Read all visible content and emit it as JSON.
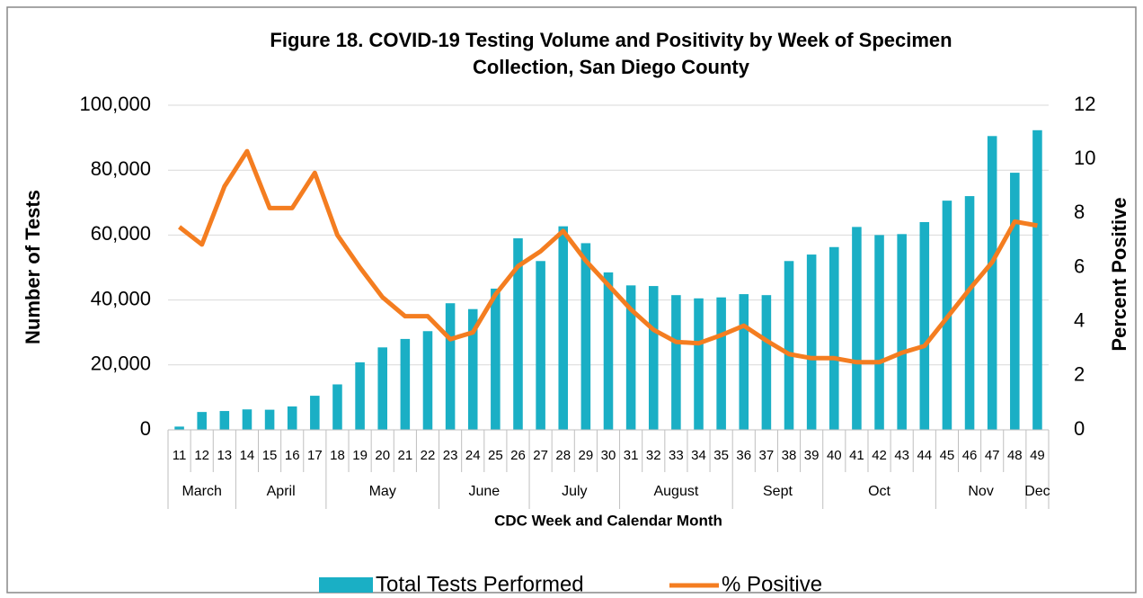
{
  "chart_data": {
    "type": "bar_line",
    "title": "Figure 18. COVID-19 Testing Volume and Positivity by Week of Specimen Collection, San Diego County",
    "title_lines": [
      "Figure 18. COVID-19 Testing Volume and Positivity by Week of Specimen",
      "Collection, San Diego County"
    ],
    "x_label": "CDC Week and Calendar Month",
    "y_label": "Number of Tests",
    "y2_label": "Percent Positive",
    "categories": [
      "11",
      "12",
      "13",
      "14",
      "15",
      "16",
      "17",
      "18",
      "19",
      "20",
      "21",
      "22",
      "23",
      "24",
      "25",
      "26",
      "27",
      "28",
      "29",
      "30",
      "31",
      "32",
      "33",
      "34",
      "35",
      "36",
      "37",
      "38",
      "39",
      "40",
      "41",
      "42",
      "43",
      "44",
      "45",
      "46",
      "47",
      "48",
      "49"
    ],
    "month_groups": [
      {
        "label": "March",
        "weeks": 3
      },
      {
        "label": "April",
        "weeks": 4
      },
      {
        "label": "May",
        "weeks": 5
      },
      {
        "label": "June",
        "weeks": 4
      },
      {
        "label": "July",
        "weeks": 4
      },
      {
        "label": "August",
        "weeks": 5
      },
      {
        "label": "Sept",
        "weeks": 4
      },
      {
        "label": "Oct",
        "weeks": 5
      },
      {
        "label": "Nov",
        "weeks": 4
      },
      {
        "label": "Dec",
        "weeks": 1
      }
    ],
    "series": [
      {
        "name": "Total Tests Performed",
        "type": "bar",
        "color": "#1aafc5",
        "values": [
          1000,
          5500,
          5800,
          6300,
          6200,
          7200,
          10500,
          14000,
          20800,
          25400,
          28000,
          30400,
          39000,
          37200,
          43500,
          59000,
          52000,
          62700,
          57500,
          48500,
          44500,
          44300,
          41500,
          40500,
          40800,
          41800,
          41500,
          52000,
          54000,
          56300,
          62500,
          60000,
          60300,
          64000,
          70600,
          72000,
          90500,
          79200,
          92300
        ]
      },
      {
        "name": "% Positive",
        "type": "line",
        "axis": "y2",
        "color": "#f47d20",
        "values": [
          7.5,
          6.85,
          9.0,
          10.3,
          8.2,
          8.2,
          9.5,
          7.2,
          6.0,
          4.9,
          4.2,
          4.2,
          3.35,
          3.6,
          5.0,
          6.05,
          6.6,
          7.35,
          6.25,
          5.35,
          4.45,
          3.7,
          3.25,
          3.2,
          3.5,
          3.85,
          3.3,
          2.8,
          2.65,
          2.65,
          2.5,
          2.5,
          2.85,
          3.1,
          4.15,
          5.2,
          6.2,
          7.7,
          7.55
        ]
      }
    ],
    "ylim": [
      0,
      100000
    ],
    "yticks": [
      0,
      {
        "value": 20000,
        "label": "20,000"
      },
      {
        "value": 40000,
        "label": "40,000"
      },
      {
        "value": 60000,
        "label": "60,000"
      },
      {
        "value": 80000,
        "label": "80,000"
      },
      {
        "value": 100000,
        "label": "100,000"
      }
    ],
    "y2lim": [
      0,
      12
    ],
    "y2ticks": [
      0,
      2,
      4,
      6,
      8,
      10,
      12
    ],
    "legend": "bottom"
  }
}
